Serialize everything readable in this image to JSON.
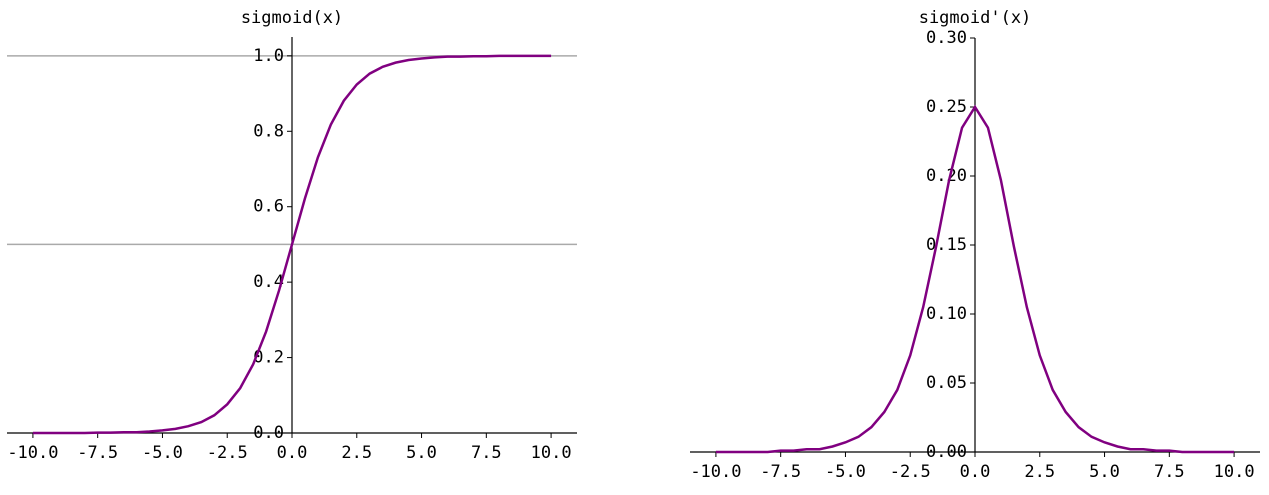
{
  "chart_data": [
    {
      "type": "line",
      "title": "sigmoid(x)",
      "x": [
        -10,
        -9.5,
        -9,
        -8.5,
        -8,
        -7.5,
        -7,
        -6.5,
        -6,
        -5.5,
        -5,
        -4.5,
        -4,
        -3.5,
        -3,
        -2.5,
        -2,
        -1.5,
        -1,
        -0.5,
        0,
        0.5,
        1,
        1.5,
        2,
        2.5,
        3,
        3.5,
        4,
        4.5,
        5,
        5.5,
        6,
        6.5,
        7,
        7.5,
        8,
        8.5,
        9,
        9.5,
        10
      ],
      "series": [
        {
          "color": "#800080",
          "values": [
            0,
            0,
            0,
            0,
            0,
            0.001,
            0.001,
            0.002,
            0.002,
            0.004,
            0.007,
            0.011,
            0.018,
            0.029,
            0.047,
            0.076,
            0.119,
            0.182,
            0.269,
            0.378,
            0.5,
            0.622,
            0.731,
            0.818,
            0.881,
            0.924,
            0.953,
            0.971,
            0.982,
            0.989,
            0.993,
            0.996,
            0.998,
            0.998,
            0.999,
            0.999,
            1,
            1,
            1,
            1,
            1
          ]
        }
      ],
      "xlim": [
        -11,
        11
      ],
      "ylim": [
        0,
        1.05
      ],
      "xticks": [
        {
          "value": -10,
          "label": "-10.0"
        },
        {
          "value": -7.5,
          "label": "-7.5"
        },
        {
          "value": -5,
          "label": "-5.0"
        },
        {
          "value": -2.5,
          "label": "-2.5"
        },
        {
          "value": 0,
          "label": "0.0"
        },
        {
          "value": 2.5,
          "label": "2.5"
        },
        {
          "value": 5,
          "label": "5.0"
        },
        {
          "value": 7.5,
          "label": "7.5"
        },
        {
          "value": 10,
          "label": "10.0"
        }
      ],
      "yticks": [
        {
          "value": 0,
          "label": "0.0"
        },
        0.2,
        0.4,
        0.6,
        0.8,
        {
          "value": 1,
          "label": "1.0"
        }
      ],
      "hlines": [
        0.5,
        1
      ]
    },
    {
      "type": "line",
      "title": "sigmoid'(x)",
      "x": [
        -10,
        -9.5,
        -9,
        -8.5,
        -8,
        -7.5,
        -7,
        -6.5,
        -6,
        -5.5,
        -5,
        -4.5,
        -4,
        -3.5,
        -3,
        -2.5,
        -2,
        -1.5,
        -1,
        -0.5,
        0,
        0.5,
        1,
        1.5,
        2,
        2.5,
        3,
        3.5,
        4,
        4.5,
        5,
        5.5,
        6,
        6.5,
        7,
        7.5,
        8,
        8.5,
        9,
        9.5,
        10
      ],
      "series": [
        {
          "color": "#800080",
          "values": [
            0,
            0,
            0,
            0,
            0,
            0.001,
            0.001,
            0.002,
            0.002,
            0.004,
            0.007,
            0.011,
            0.018,
            0.029,
            0.045,
            0.07,
            0.105,
            0.149,
            0.197,
            0.235,
            0.25,
            0.235,
            0.197,
            0.149,
            0.105,
            0.07,
            0.045,
            0.029,
            0.018,
            0.011,
            0.007,
            0.004,
            0.002,
            0.002,
            0.001,
            0.001,
            0,
            0,
            0,
            0,
            0
          ]
        }
      ],
      "xlim": [
        -11,
        11
      ],
      "ylim": [
        0,
        0.3
      ],
      "xticks": [
        {
          "value": -10,
          "label": "-10.0"
        },
        {
          "value": -7.5,
          "label": "-7.5"
        },
        {
          "value": -5,
          "label": "-5.0"
        },
        {
          "value": -2.5,
          "label": "-2.5"
        },
        {
          "value": 0,
          "label": "0.0"
        },
        {
          "value": 2.5,
          "label": "2.5"
        },
        {
          "value": 5,
          "label": "5.0"
        },
        {
          "value": 7.5,
          "label": "7.5"
        },
        {
          "value": 10,
          "label": "10.0"
        }
      ],
      "yticks": [
        {
          "value": 0,
          "label": "0.00"
        },
        0.05,
        {
          "value": 0.1,
          "label": "0.10"
        },
        0.15,
        {
          "value": 0.2,
          "label": "0.20"
        },
        0.25,
        {
          "value": 0.3,
          "label": "0.30"
        }
      ]
    }
  ]
}
